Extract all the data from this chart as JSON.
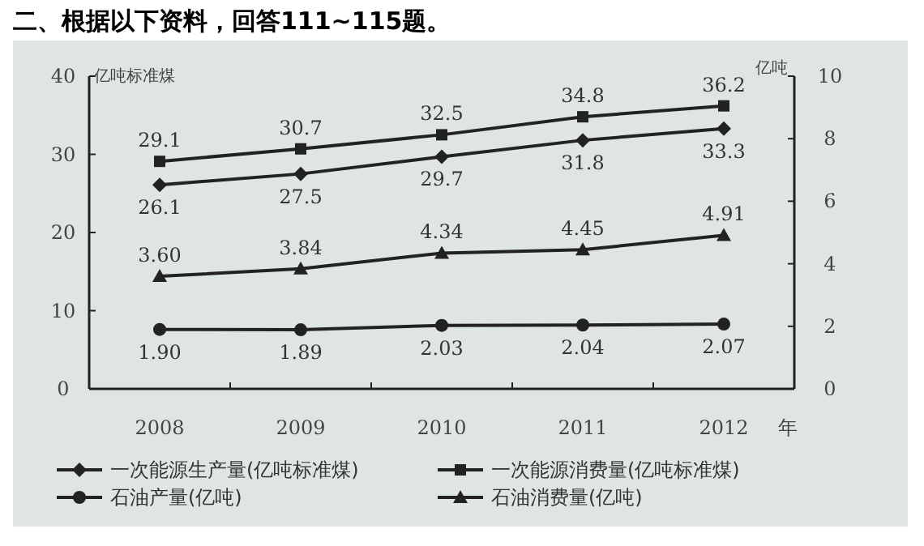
{
  "chart_data": {
    "type": "line",
    "title": "二、根据以下资料，回答111~115题。",
    "xlabel": "年",
    "ylabel": "亿吨标准煤",
    "y2label": "亿吨",
    "categories": [
      "2008",
      "2009",
      "2010",
      "2011",
      "2012"
    ],
    "series": [
      {
        "name": "一次能源生产量(亿吨标准煤)",
        "color": "#222222",
        "marker": "diamond",
        "values": [
          26.1,
          27.5,
          29.7,
          31.8,
          33.3
        ],
        "value_labels": [
          "26.1",
          "27.5",
          "29.7",
          "31.8",
          "33.3"
        ]
      },
      {
        "name": "一次能源消费量(亿吨标准煤)",
        "color": "#222222",
        "marker": "square",
        "values": [
          29.1,
          30.7,
          32.5,
          34.8,
          36.2
        ],
        "value_labels": [
          "29.1",
          "30.7",
          "32.5",
          "34.8",
          "36.2"
        ]
      },
      {
        "name": "石油产量(亿吨)",
        "color": "#222222",
        "marker": "circle",
        "axis": "y2",
        "values": [
          1.9,
          1.89,
          2.03,
          2.04,
          2.07
        ],
        "value_labels": [
          "1.90",
          "1.89",
          "2.03",
          "2.04",
          "2.07"
        ]
      },
      {
        "name": "石油消费量(亿吨)",
        "color": "#222222",
        "marker": "triangle",
        "axis": "y2",
        "values": [
          3.6,
          3.84,
          4.34,
          4.45,
          4.91
        ],
        "value_labels": [
          "3.60",
          "3.84",
          "4.34",
          "4.45",
          "4.91"
        ]
      }
    ],
    "ylim": [
      0,
      40
    ],
    "yticks": [
      0,
      10,
      20,
      30,
      40
    ],
    "y2lim": [
      0,
      10
    ],
    "y2ticks": [
      0,
      2,
      4,
      6,
      8,
      10
    ],
    "legend": "bottom",
    "grid": false,
    "line_style": "solid"
  }
}
